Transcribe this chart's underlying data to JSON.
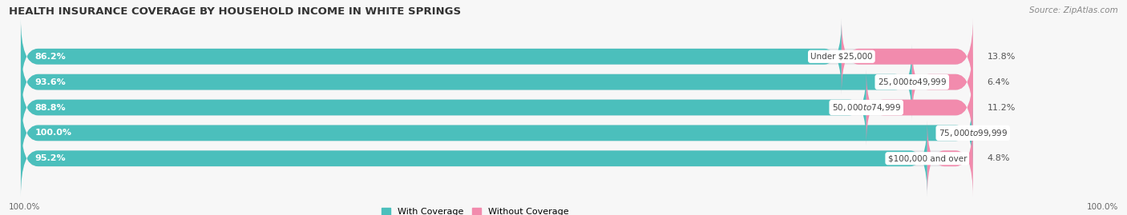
{
  "title": "HEALTH INSURANCE COVERAGE BY HOUSEHOLD INCOME IN WHITE SPRINGS",
  "source": "Source: ZipAtlas.com",
  "categories": [
    "Under $25,000",
    "$25,000 to $49,999",
    "$50,000 to $74,999",
    "$75,000 to $99,999",
    "$100,000 and over"
  ],
  "with_coverage": [
    86.2,
    93.6,
    88.8,
    100.0,
    95.2
  ],
  "without_coverage": [
    13.8,
    6.4,
    11.2,
    0.0,
    4.8
  ],
  "color_with": "#4BBFBC",
  "color_without": "#F28BAD",
  "bar_bg": "#E2E2E6",
  "bar_height": 0.62,
  "bar_gap": 1.0,
  "xlim_left": -2,
  "xlim_right": 115,
  "legend_with": "With Coverage",
  "legend_without": "Without Coverage",
  "x_left_label": "100.0%",
  "x_right_label": "100.0%",
  "bg_color": "#F7F7F7"
}
